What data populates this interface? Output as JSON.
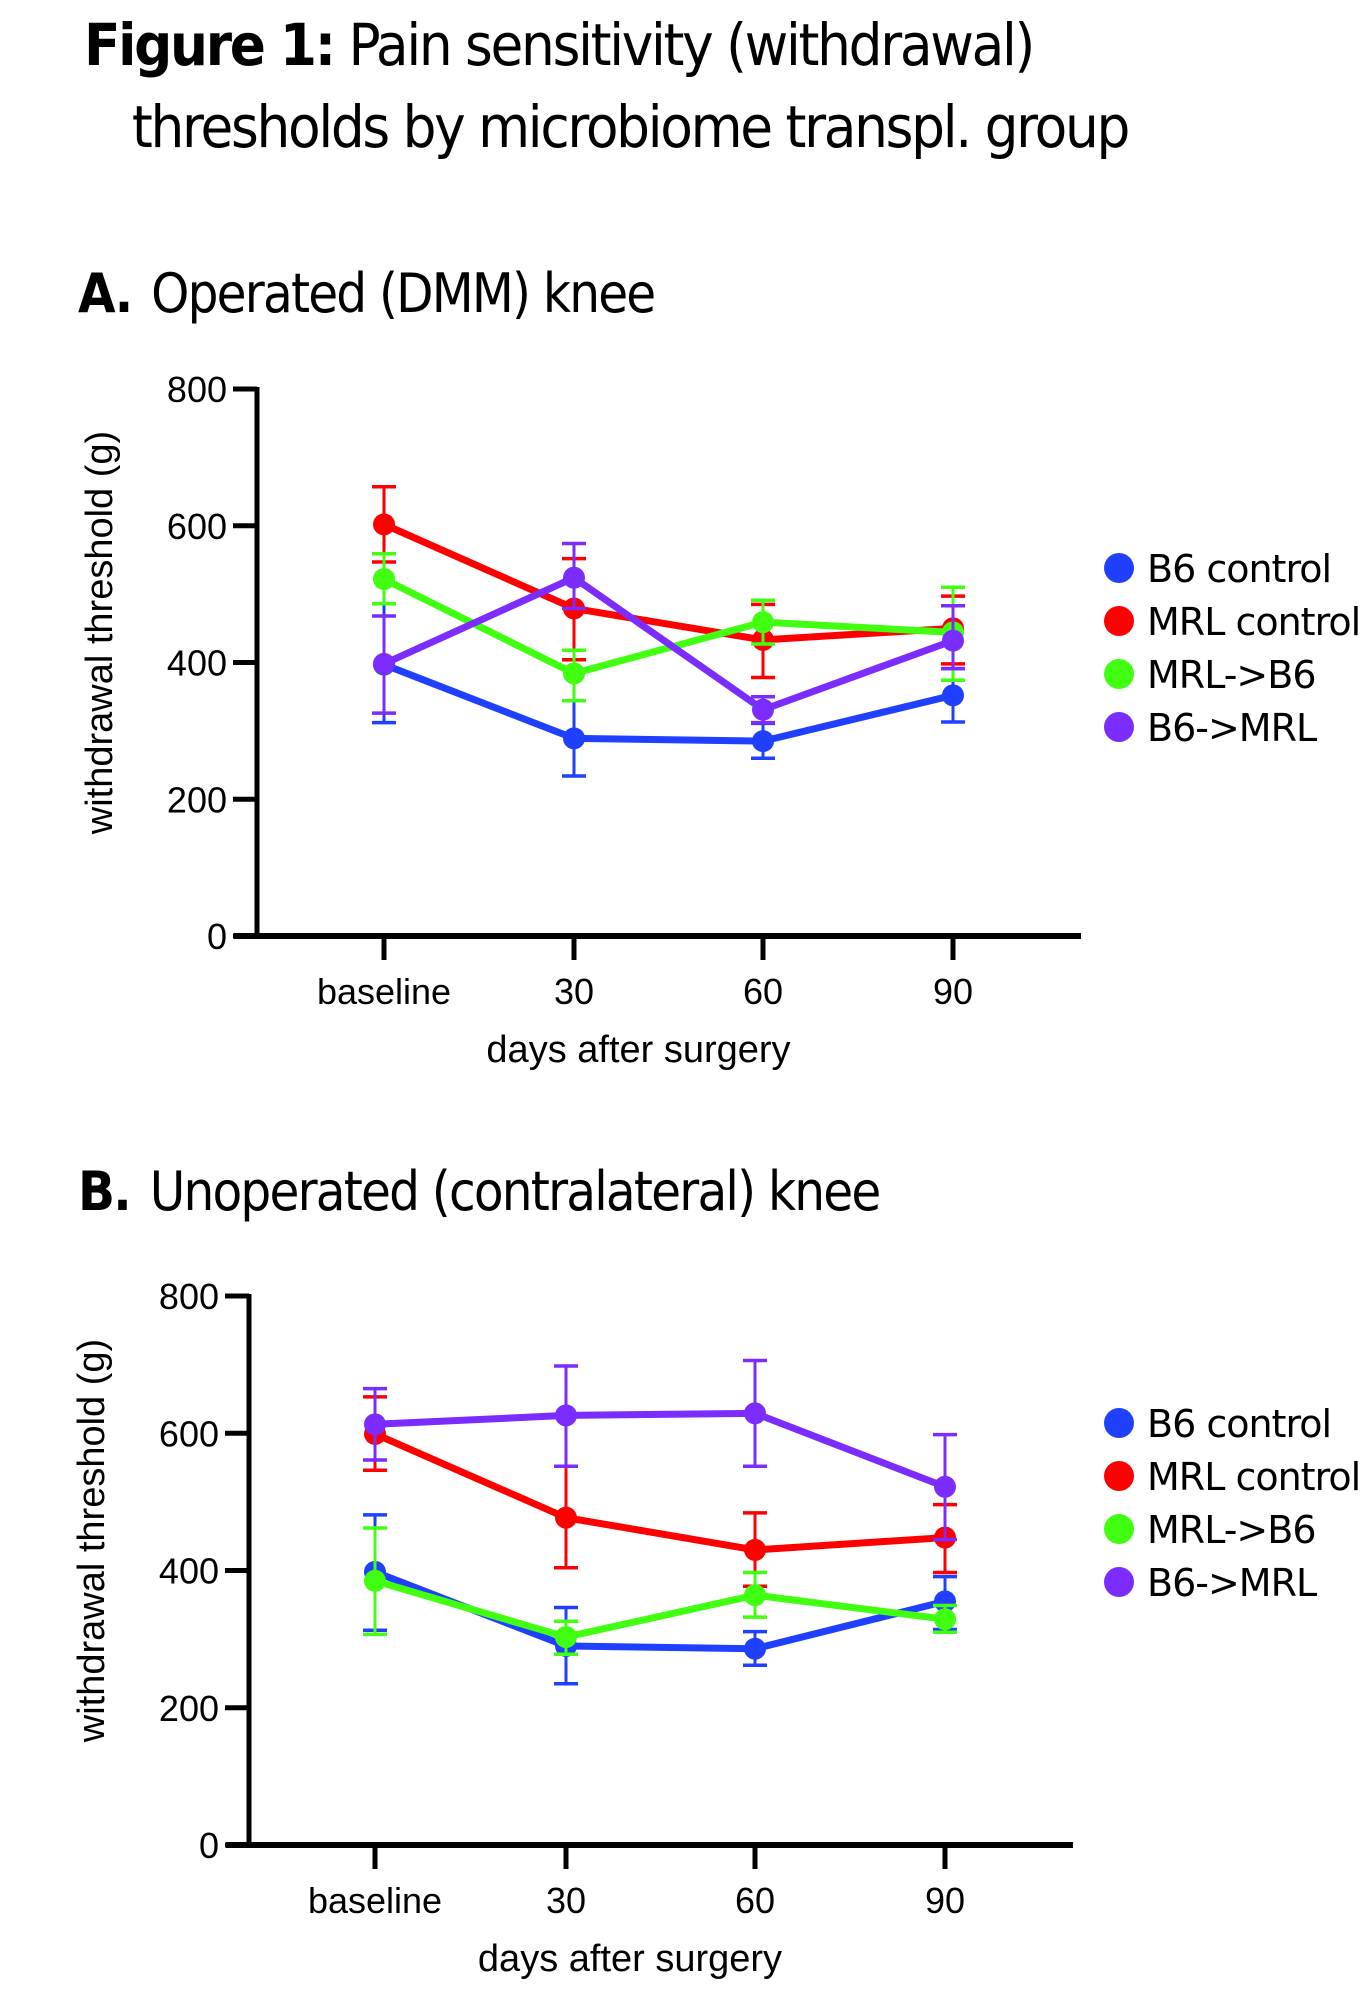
{
  "figure": {
    "title_bold": "Figure 1:",
    "title_rest_line1": "Pain sensitivity (withdrawal)",
    "title_line2": "thresholds by microbiome transpl. group"
  },
  "colors": {
    "B6 control": "#2040FF",
    "MRL control": "#FF0000",
    "MRL->B6": "#40FF10",
    "B6->MRL": "#7B2CFF",
    "axis": "#000000"
  },
  "chart_data": [
    {
      "id": "A",
      "type": "line",
      "panel_letter": "A.",
      "title": "Operated (DMM) knee",
      "xlabel": "days after surgery",
      "ylabel": "withdrawal threshold (g)",
      "categories": [
        "baseline",
        "30",
        "60",
        "90"
      ],
      "ylim": [
        0,
        800
      ],
      "yticks": [
        0,
        200,
        400,
        600,
        800
      ],
      "grid": false,
      "legend_position": "right",
      "error_bars": true,
      "series": [
        {
          "name": "B6 control",
          "values": [
            397,
            289,
            285,
            352
          ],
          "err_low": [
            312,
            234,
            260,
            313
          ],
          "err_high": [
            486,
            344,
            311,
            391
          ]
        },
        {
          "name": "MRL control",
          "values": [
            602,
            479,
            433,
            450
          ],
          "err_low": [
            547,
            404,
            378,
            398
          ],
          "err_high": [
            657,
            552,
            485,
            497
          ]
        },
        {
          "name": "MRL->B6",
          "values": [
            522,
            384,
            459,
            444
          ],
          "err_low": [
            486,
            344,
            427,
            374
          ],
          "err_high": [
            559,
            418,
            491,
            510
          ]
        },
        {
          "name": "B6->MRL",
          "values": [
            398,
            524,
            331,
            432
          ],
          "err_low": [
            326,
            479,
            312,
            391
          ],
          "err_high": [
            468,
            574,
            350,
            483
          ]
        }
      ]
    },
    {
      "id": "B",
      "type": "line",
      "panel_letter": "B.",
      "title": "Unoperated (contralateral) knee",
      "xlabel": "days after surgery",
      "ylabel": "withdrawal threshold (g)",
      "categories": [
        "baseline",
        "30",
        "60",
        "90"
      ],
      "ylim": [
        0,
        800
      ],
      "yticks": [
        0,
        200,
        400,
        600,
        800
      ],
      "grid": false,
      "legend_position": "right",
      "error_bars": true,
      "series": [
        {
          "name": "B6 control",
          "values": [
            398,
            290,
            286,
            355
          ],
          "err_low": [
            313,
            235,
            262,
            314
          ],
          "err_high": [
            481,
            346,
            311,
            391
          ]
        },
        {
          "name": "MRL control",
          "values": [
            599,
            477,
            430,
            448
          ],
          "err_low": [
            546,
            404,
            377,
            397
          ],
          "err_high": [
            653,
            552,
            484,
            496
          ]
        },
        {
          "name": "MRL->B6",
          "values": [
            385,
            303,
            364,
            329
          ],
          "err_low": [
            307,
            278,
            332,
            310
          ],
          "err_high": [
            462,
            326,
            397,
            349
          ]
        },
        {
          "name": "B6->MRL",
          "values": [
            613,
            626,
            629,
            522
          ],
          "err_low": [
            561,
            552,
            552,
            445
          ],
          "err_high": [
            665,
            698,
            706,
            598
          ]
        }
      ]
    }
  ]
}
